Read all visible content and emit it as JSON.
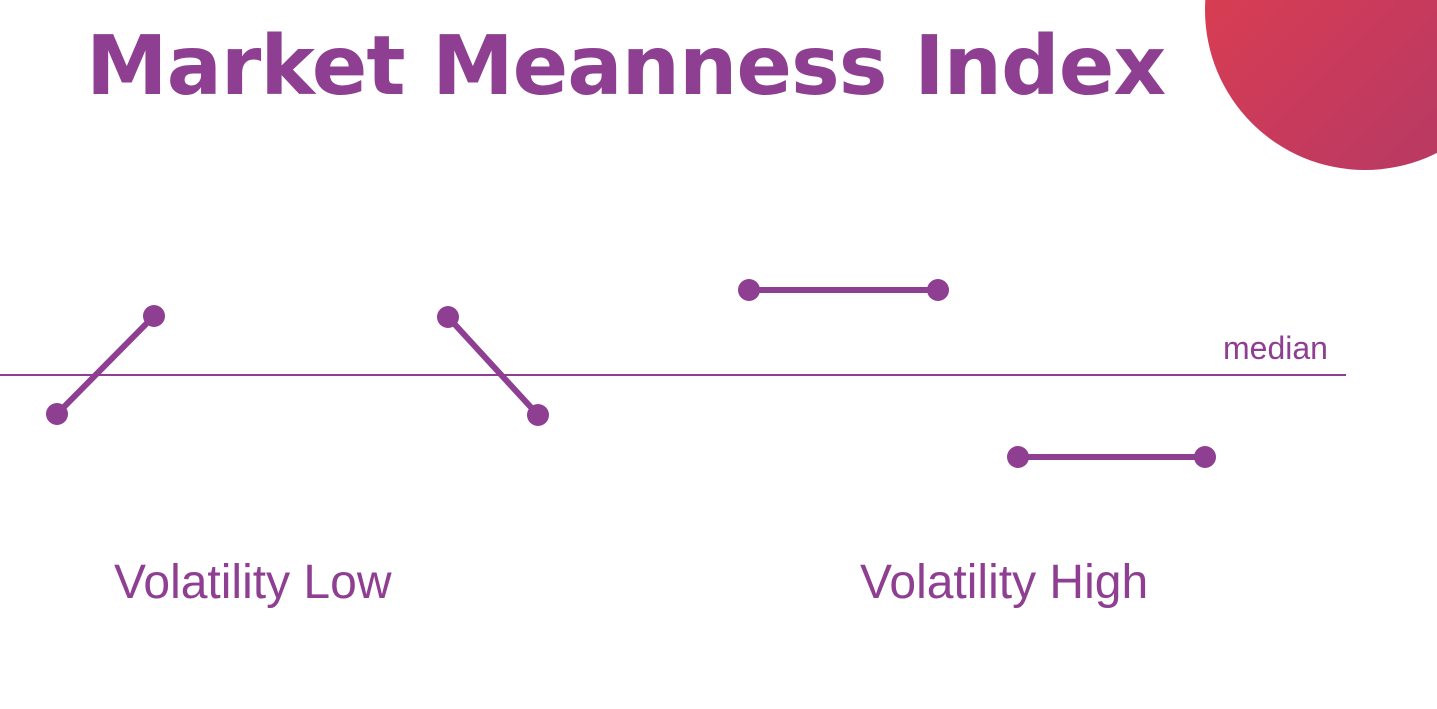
{
  "title": "Market Meanness Index",
  "median_label": "median",
  "labels": {
    "volatility_low": "Volatility Low",
    "volatility_high": "Volatility High"
  },
  "colors": {
    "accent": "#8e3f92",
    "corner_blob": "#d63f50"
  }
}
